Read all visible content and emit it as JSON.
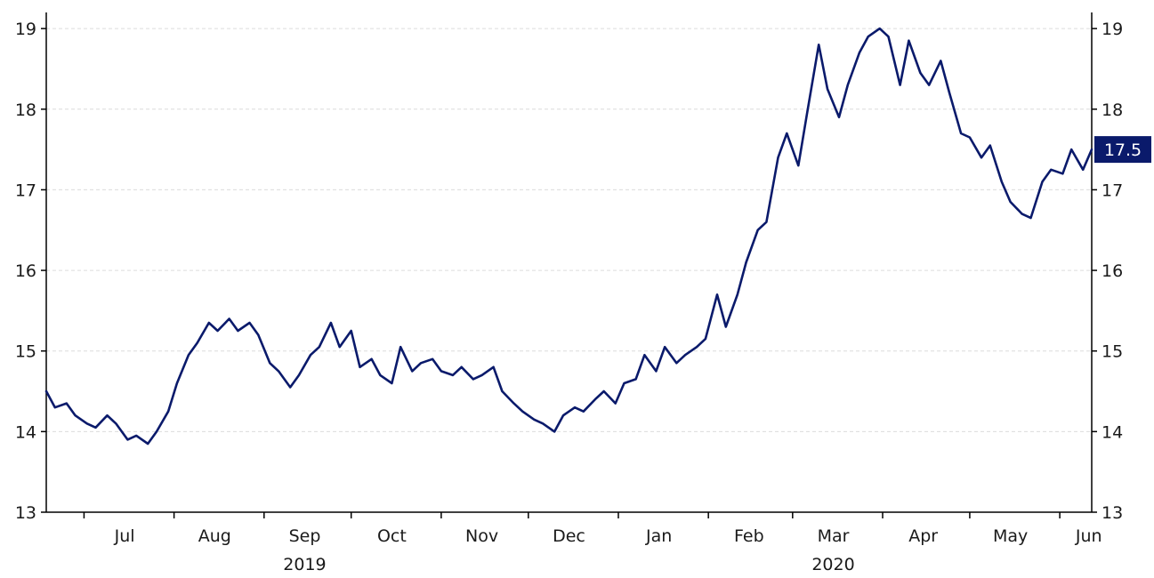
{
  "chart_data": {
    "type": "line",
    "title": "",
    "xlabel": "",
    "ylabel": "",
    "ylim": [
      13,
      19.2
    ],
    "y_ticks": [
      13,
      14,
      15,
      16,
      17,
      18,
      19
    ],
    "y_tick_labels": [
      "13",
      "14",
      "15",
      "16",
      "17",
      "18",
      "19"
    ],
    "grid": "horizontal-dashed",
    "line_color": "#0a1a6b",
    "month_labels": [
      {
        "label": "Jul",
        "date": "2019-07-15"
      },
      {
        "label": "Aug",
        "date": "2019-08-15"
      },
      {
        "label": "Sep",
        "date": "2019-09-15"
      },
      {
        "label": "Oct",
        "date": "2019-10-15"
      },
      {
        "label": "Nov",
        "date": "2019-11-15"
      },
      {
        "label": "Dec",
        "date": "2019-12-15"
      },
      {
        "label": "Jan",
        "date": "2020-01-15"
      },
      {
        "label": "Feb",
        "date": "2020-02-15"
      },
      {
        "label": "Mar",
        "date": "2020-03-15"
      },
      {
        "label": "Apr",
        "date": "2020-04-15"
      },
      {
        "label": "May",
        "date": "2020-05-15"
      },
      {
        "label": "Jun",
        "date": "2020-06-11"
      }
    ],
    "month_ticks": [
      "2019-07-01",
      "2019-08-01",
      "2019-09-01",
      "2019-10-01",
      "2019-11-01",
      "2019-12-01",
      "2020-01-01",
      "2020-02-01",
      "2020-03-01",
      "2020-04-01",
      "2020-05-01",
      "2020-06-01"
    ],
    "year_labels": [
      {
        "label": "2019",
        "date": "2019-09-15"
      },
      {
        "label": "2020",
        "date": "2020-03-15"
      }
    ],
    "last_value_label": "17.5",
    "series": [
      {
        "x": [
          "2019-06-18",
          "2019-06-21",
          "2019-06-25",
          "2019-06-28",
          "2019-07-02",
          "2019-07-05",
          "2019-07-09",
          "2019-07-12",
          "2019-07-16",
          "2019-07-19",
          "2019-07-23",
          "2019-07-26",
          "2019-07-30",
          "2019-08-02",
          "2019-08-06",
          "2019-08-09",
          "2019-08-13",
          "2019-08-16",
          "2019-08-20",
          "2019-08-23",
          "2019-08-27",
          "2019-08-30",
          "2019-09-03",
          "2019-09-06",
          "2019-09-10",
          "2019-09-13",
          "2019-09-17",
          "2019-09-20",
          "2019-09-24",
          "2019-09-27",
          "2019-10-01",
          "2019-10-04",
          "2019-10-08",
          "2019-10-11",
          "2019-10-15",
          "2019-10-18",
          "2019-10-22",
          "2019-10-25",
          "2019-10-29",
          "2019-11-01",
          "2019-11-05",
          "2019-11-08",
          "2019-11-12",
          "2019-11-15",
          "2019-11-19",
          "2019-11-22",
          "2019-11-26",
          "2019-11-29",
          "2019-12-03",
          "2019-12-06",
          "2019-12-10",
          "2019-12-13",
          "2019-12-17",
          "2019-12-20",
          "2019-12-24",
          "2019-12-27",
          "2019-12-31",
          "2020-01-03",
          "2020-01-07",
          "2020-01-10",
          "2020-01-14",
          "2020-01-17",
          "2020-01-21",
          "2020-01-24",
          "2020-01-28",
          "2020-01-31",
          "2020-02-04",
          "2020-02-07",
          "2020-02-11",
          "2020-02-14",
          "2020-02-18",
          "2020-02-21",
          "2020-02-25",
          "2020-02-28",
          "2020-03-03",
          "2020-03-06",
          "2020-03-10",
          "2020-03-13",
          "2020-03-17",
          "2020-03-20",
          "2020-03-24",
          "2020-03-27",
          "2020-03-31",
          "2020-04-03",
          "2020-04-07",
          "2020-04-10",
          "2020-04-14",
          "2020-04-17",
          "2020-04-21",
          "2020-04-24",
          "2020-04-28",
          "2020-05-01",
          "2020-05-05",
          "2020-05-08",
          "2020-05-12",
          "2020-05-15",
          "2020-05-19",
          "2020-05-22",
          "2020-05-26",
          "2020-05-29",
          "2020-06-02",
          "2020-06-05",
          "2020-06-09",
          "2020-06-12"
        ],
        "values": [
          14.5,
          14.3,
          14.35,
          14.2,
          14.1,
          14.05,
          14.2,
          14.1,
          13.9,
          13.95,
          13.85,
          14.0,
          14.25,
          14.6,
          14.95,
          15.1,
          15.35,
          15.25,
          15.4,
          15.25,
          15.35,
          15.2,
          14.85,
          14.75,
          14.55,
          14.7,
          14.95,
          15.05,
          15.35,
          15.05,
          15.25,
          14.8,
          14.9,
          14.7,
          14.6,
          15.05,
          14.75,
          14.85,
          14.9,
          14.75,
          14.7,
          14.8,
          14.65,
          14.7,
          14.8,
          14.5,
          14.35,
          14.25,
          14.15,
          14.1,
          14.0,
          14.2,
          14.3,
          14.25,
          14.4,
          14.5,
          14.35,
          14.6,
          14.65,
          14.95,
          14.75,
          15.05,
          14.85,
          14.95,
          15.05,
          15.15,
          15.7,
          15.3,
          15.7,
          16.1,
          16.5,
          16.6,
          17.4,
          17.7,
          17.3,
          17.95,
          18.8,
          18.25,
          17.9,
          18.3,
          18.7,
          18.9,
          19.0,
          18.9,
          18.3,
          18.85,
          18.45,
          18.3,
          18.6,
          18.2,
          17.7,
          17.65,
          17.4,
          17.55,
          17.1,
          16.85,
          16.7,
          16.65,
          17.1,
          17.25,
          17.2,
          17.5,
          17.25,
          17.5
        ]
      }
    ]
  }
}
